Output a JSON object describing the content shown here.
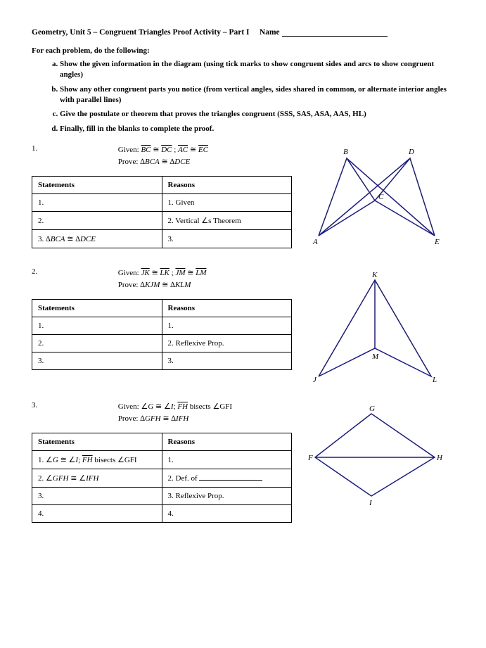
{
  "header": {
    "title": "Geometry, Unit 5 – Congruent Triangles Proof Activity – Part I",
    "name_label": "Name"
  },
  "intro": "For each problem, do the following:",
  "instructions": [
    "Show the given information in the diagram (using tick marks to show congruent sides and arcs to show congruent angles)",
    "Show any other congruent parts you notice (from vertical angles, sides shared in common, or alternate interior angles with parallel lines)",
    "Give the postulate or theorem that proves the triangles congruent (SSS, SAS, ASA, AAS, HL)",
    "Finally, fill in the blanks to complete the proof."
  ],
  "problems": [
    {
      "num": "1.",
      "given_label": "Given:",
      "given_html": "<span class='overline'>BC</span> ≅ <span class='overline'>DC</span> ; <span class='overline'>AC</span> ≅ <span class='overline'>EC</span>",
      "prove_label": "Prove:",
      "prove_html": "∆<span class='ital'>BCA</span> ≅ ∆<span class='ital'>DCE</span>",
      "headers": {
        "stmt": "Statements",
        "reason": "Reasons"
      },
      "rows": [
        {
          "stmt": "1.",
          "reason": "1. Given"
        },
        {
          "stmt": "2.",
          "reason": "2. Vertical ∠s Theorem"
        },
        {
          "stmt_html": "3. ∆<span class='ital'>BCA</span> ≅ ∆<span class='ital'>DCE</span>",
          "reason": "3."
        }
      ],
      "fig": {
        "labels": {
          "A": "A",
          "B": "B",
          "C": "C",
          "D": "D",
          "E": "E"
        },
        "stroke": "#1a1a8a"
      }
    },
    {
      "num": "2.",
      "given_label": "Given:",
      "given_html": "<span class='overline'>JK</span> ≅ <span class='overline'>LK</span> ; <span class='overline'>JM</span> ≅ <span class='overline'>LM</span>",
      "prove_label": "Prove:",
      "prove_html": "∆<span class='ital'>KJM</span> ≅ ∆<span class='ital'>KLM</span>",
      "headers": {
        "stmt": "Statements",
        "reason": "Reasons"
      },
      "rows": [
        {
          "stmt": "1.",
          "reason": "1."
        },
        {
          "stmt": "2.",
          "reason": "2. Reflexive Prop."
        },
        {
          "stmt": "3.",
          "reason": "3."
        }
      ],
      "fig": {
        "labels": {
          "J": "J",
          "K": "K",
          "L": "L",
          "M": "M"
        },
        "stroke": "#1a1a8a"
      }
    },
    {
      "num": "3.",
      "given_label": "Given:",
      "given_html": "∠<span class='ital'>G</span> ≅ ∠<span class='ital'>I</span>; <span class='overline'>FH</span> bisects ∠GFI",
      "prove_label": "Prove:",
      "prove_html": "∆<span class='ital'>GFH</span> ≅ ∆<span class='ital'>IFH</span>",
      "headers": {
        "stmt": "Statements",
        "reason": "Reasons"
      },
      "rows": [
        {
          "stmt_html": "1. ∠<span class='ital'>G</span> ≅ ∠<span class='ital'>I</span>; <span class='overline'>FH</span> bisects ∠GFI",
          "reason": "1."
        },
        {
          "stmt_html": "2.  ∠<span class='ital'>GFH</span> ≅ ∠<span class='ital'>IFH</span>",
          "reason_html": "2. Def. of <span class='blank-line'></span>"
        },
        {
          "stmt": "3.",
          "reason": "3. Reflexive Prop."
        },
        {
          "stmt": "4.",
          "reason": "4."
        }
      ],
      "fig": {
        "labels": {
          "F": "F",
          "G": "G",
          "H": "H",
          "I": "I"
        },
        "stroke": "#1a1a8a"
      }
    }
  ]
}
